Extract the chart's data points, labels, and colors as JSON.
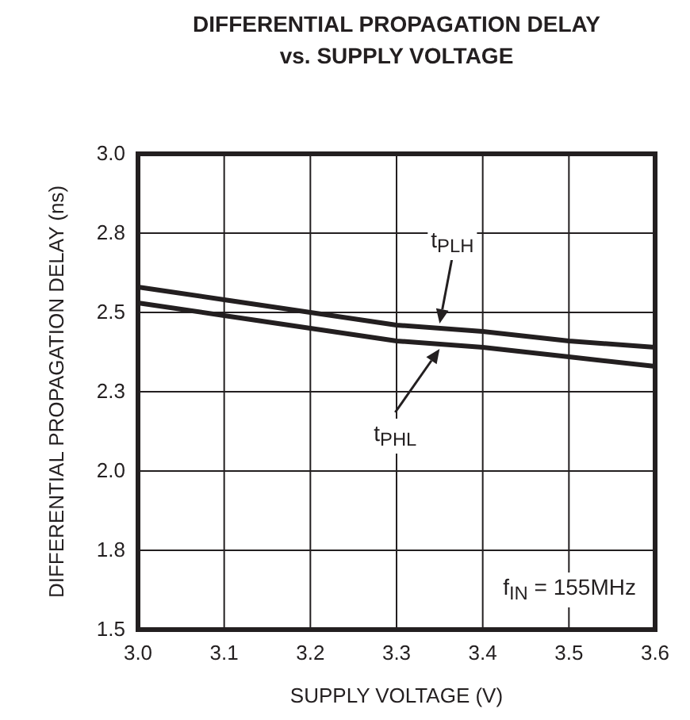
{
  "chart_data": {
    "type": "line",
    "title": "DIFFERENTIAL PROPAGATION DELAY\nvs. SUPPLY VOLTAGE",
    "xlabel": "SUPPLY VOLTAGE (V)",
    "ylabel": "DIFFERENTIAL PROPAGATION DELAY (ns)",
    "x": [
      3.0,
      3.1,
      3.2,
      3.3,
      3.4,
      3.5,
      3.6
    ],
    "series": [
      {
        "name": "t$_{PLH}$",
        "color": "#231f20",
        "values": [
          2.58,
          2.54,
          2.5,
          2.46,
          2.44,
          2.41,
          2.39
        ]
      },
      {
        "name": "t$_{PHL}$",
        "color": "#231f20",
        "values": [
          2.53,
          2.49,
          2.45,
          2.41,
          2.39,
          2.36,
          2.33
        ]
      }
    ],
    "xlim": [
      3.0,
      3.6
    ],
    "xticks": [
      {
        "value": 3.0,
        "label": "3.0"
      },
      3.1,
      3.2,
      3.3,
      3.4,
      3.5,
      {
        "value": 3.6,
        "label": "3.6"
      }
    ],
    "ylim": [
      1.5,
      3.0
    ],
    "yticks": [
      {
        "value": 1.5,
        "label": "1.5"
      },
      {
        "value": 1.75,
        "label": "1.8"
      },
      {
        "value": 2.0,
        "label": "2.0"
      },
      {
        "value": 2.25,
        "label": "2.3"
      },
      {
        "value": 2.5,
        "label": "2.5"
      },
      {
        "value": 2.75,
        "label": "2.8"
      },
      {
        "value": 3.0,
        "label": "3.0"
      }
    ],
    "grid": true,
    "line_style": "solid",
    "marker": "none",
    "annotations": [
      "f$_{IN}$ = 155MHz"
    ]
  }
}
